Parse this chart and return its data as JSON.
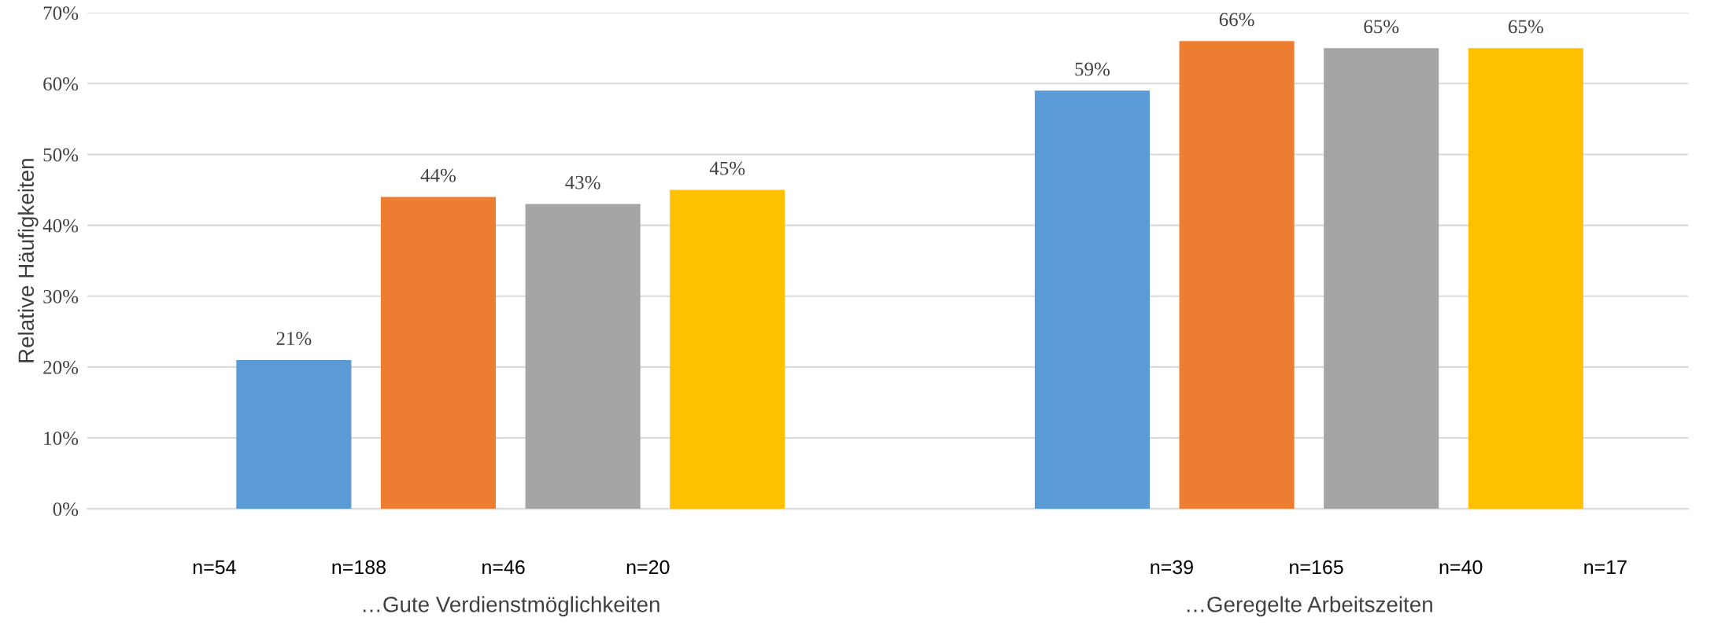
{
  "chart_data": {
    "type": "bar",
    "categories": [
      "…Gute Verdienstmöglichkeiten",
      "…Geregelte Arbeitszeiten"
    ],
    "series": [
      {
        "color": "#5b9bd5",
        "values": [
          21,
          59
        ]
      },
      {
        "color": "#ed7d31",
        "values": [
          44,
          66
        ]
      },
      {
        "color": "#a5a5a5",
        "values": [
          43,
          65
        ]
      },
      {
        "color": "#ffc000",
        "values": [
          45,
          65
        ]
      }
    ],
    "value_labels": [
      [
        "21%",
        "59%"
      ],
      [
        "44%",
        "66%"
      ],
      [
        "43%",
        "65%"
      ],
      [
        "45%",
        "65%"
      ]
    ],
    "ylabel": "Relative Häufigkeiten",
    "ylim": [
      0,
      70
    ],
    "yticks": [
      {
        "value": 0,
        "label": "0%"
      },
      {
        "value": 10,
        "label": "10%"
      },
      {
        "value": 20,
        "label": "20%"
      },
      {
        "value": 30,
        "label": "30%"
      },
      {
        "value": 40,
        "label": "40%"
      },
      {
        "value": 50,
        "label": "50%"
      },
      {
        "value": 60,
        "label": "60%"
      },
      {
        "value": 70,
        "label": "70%"
      }
    ],
    "grid": "y",
    "legend": false,
    "annotations": [
      "n=54",
      "n=188",
      "n=46",
      "n=20",
      "n=39",
      "n=165",
      "n=40",
      "n=17"
    ]
  }
}
